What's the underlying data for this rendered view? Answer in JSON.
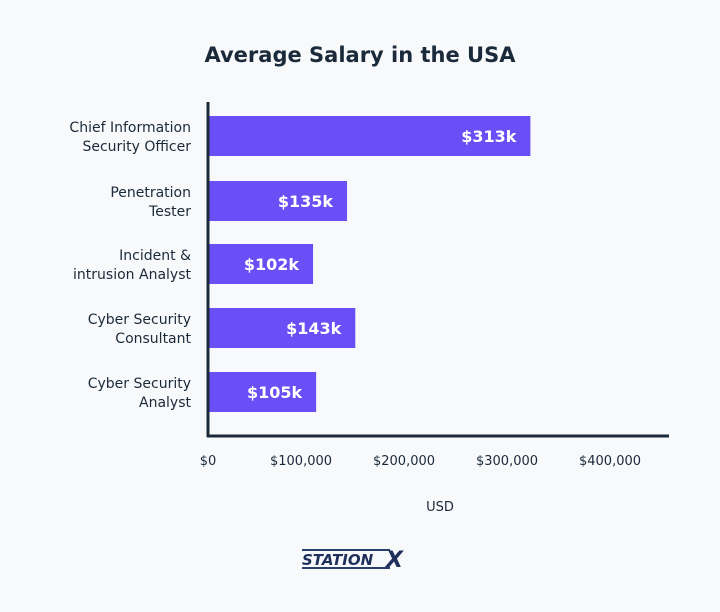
{
  "chart_data": {
    "type": "bar",
    "orientation": "horizontal",
    "title": "Average Salary in the USA",
    "xlabel": "USD",
    "ylabel": "",
    "categories": [
      [
        "Chief Information",
        "Security Officer"
      ],
      [
        "Penetration",
        "Tester"
      ],
      [
        "Incident &",
        "intrusion Analyst"
      ],
      [
        "Cyber Security",
        "Consultant"
      ],
      [
        "Cyber Security",
        "Analyst"
      ]
    ],
    "values": [
      313000,
      135000,
      102000,
      143000,
      105000
    ],
    "data_labels": [
      "$313k",
      "$135k",
      "$102k",
      "$143k",
      "$105k"
    ],
    "xlim": [
      0,
      400000
    ],
    "xticks": [
      0,
      100000,
      200000,
      300000,
      400000
    ],
    "xtick_labels": [
      "$0",
      "$100,000",
      "$200,000",
      "$300,000",
      "$400,000"
    ],
    "grid": false,
    "colors": {
      "bar": "#6b4ff6",
      "text": "#1b2a3a",
      "axis": "#1b2a3a",
      "background": "#f7f9fb"
    }
  },
  "branding": {
    "logo_text": "STATIONX"
  }
}
